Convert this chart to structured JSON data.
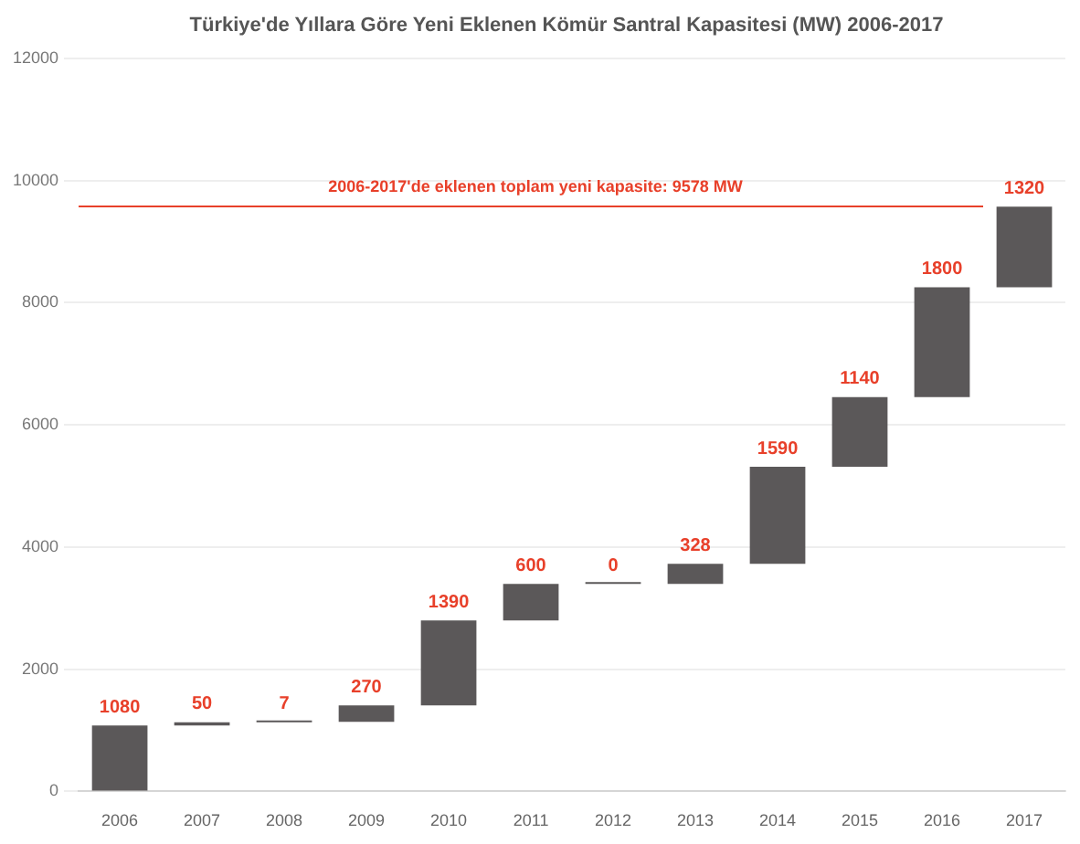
{
  "chart_data": {
    "type": "bar",
    "title": "Türkiye'de Yıllara Göre Yeni Eklenen Kömür Santral Kapasitesi (MW) 2006-2017",
    "categories": [
      "2006",
      "2007",
      "2008",
      "2009",
      "2010",
      "2011",
      "2012",
      "2013",
      "2014",
      "2015",
      "2016",
      "2017"
    ],
    "values": [
      1080,
      50,
      7,
      270,
      1390,
      600,
      0,
      328,
      1590,
      1140,
      1800,
      1320
    ],
    "base": [
      0,
      1080,
      1130,
      1137,
      1407,
      2797,
      3397,
      3397,
      3725,
      5315,
      6455,
      8255
    ],
    "color": "#5b5859",
    "data_labels": true,
    "ylim": [
      0,
      12000
    ],
    "yticks": [
      0,
      2000,
      4000,
      6000,
      8000,
      10000,
      12000
    ],
    "grid": "y",
    "legend": false,
    "ref_lines": [
      {
        "axis": "y",
        "value": 9578,
        "label": "2006-2017'de eklenen toplam yeni kapasite: 9578 MW",
        "color": "#e8402a"
      }
    ]
  }
}
